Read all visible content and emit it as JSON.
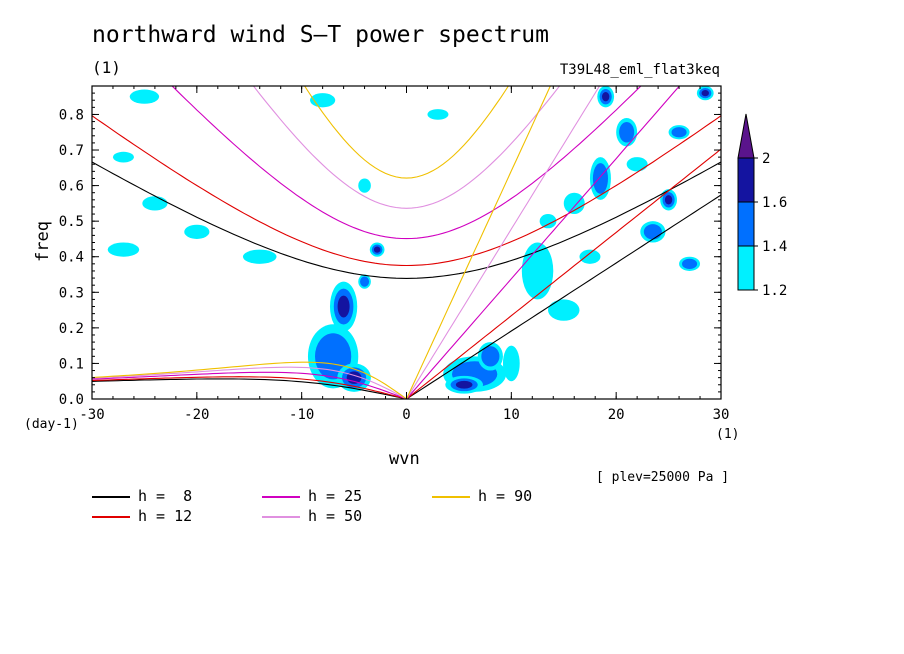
{
  "title": "northward wind S–T power spectrum",
  "subtitle_unit": "(1)",
  "run_name": "T39L48_eml_flat3keq",
  "plev_note": "[ plev=25000 Pa ]",
  "chart_data": {
    "type": "heatmap",
    "xlabel": "wvn",
    "xunit": "(1)",
    "ylabel": "freq",
    "yunit": "(day-1)",
    "xlim": [
      -30,
      30
    ],
    "ylim": [
      0,
      0.88
    ],
    "xticks": [
      "-30",
      "-20",
      "-10",
      "0",
      "10",
      "20",
      "30"
    ],
    "yticks": [
      "0.0",
      "0.1",
      "0.2",
      "0.3",
      "0.4",
      "0.5",
      "0.6",
      "0.7",
      "0.8"
    ],
    "colorbar": {
      "levels": [
        "1.2",
        "1.4",
        "1.6",
        "2"
      ],
      "colors": [
        "#00f0ff",
        "#0070ff",
        "#1414a0",
        "#5a148c"
      ]
    },
    "dispersion_curves": [
      {
        "name": "h =  8",
        "h": 8,
        "color": "#000000"
      },
      {
        "name": "h = 12",
        "h": 12,
        "color": "#e00000"
      },
      {
        "name": "h = 25",
        "h": 25,
        "color": "#d000c0"
      },
      {
        "name": "h = 50",
        "h": 50,
        "color": "#e090e0"
      },
      {
        "name": "h = 90",
        "h": 90,
        "color": "#f0c000"
      }
    ],
    "blobs": [
      {
        "x": -6.0,
        "y": 0.26,
        "rx": 1.3,
        "ry": 0.07,
        "level": 2
      },
      {
        "x": -7.0,
        "y": 0.12,
        "rx": 2.4,
        "ry": 0.09,
        "level": 1
      },
      {
        "x": -5.0,
        "y": 0.06,
        "rx": 1.6,
        "ry": 0.04,
        "level": 2
      },
      {
        "x": -4.0,
        "y": 0.33,
        "rx": 0.6,
        "ry": 0.02,
        "level": 1
      },
      {
        "x": -2.8,
        "y": 0.42,
        "rx": 0.7,
        "ry": 0.02,
        "level": 2
      },
      {
        "x": 6.5,
        "y": 0.07,
        "rx": 3.0,
        "ry": 0.05,
        "level": 1
      },
      {
        "x": 5.5,
        "y": 0.04,
        "rx": 1.8,
        "ry": 0.025,
        "level": 2
      },
      {
        "x": 8.0,
        "y": 0.12,
        "rx": 1.2,
        "ry": 0.04,
        "level": 1
      },
      {
        "x": 12.5,
        "y": 0.36,
        "rx": 1.5,
        "ry": 0.08,
        "level": 0
      },
      {
        "x": 18.5,
        "y": 0.62,
        "rx": 1.0,
        "ry": 0.06,
        "level": 1
      },
      {
        "x": 21.0,
        "y": 0.75,
        "rx": 1.0,
        "ry": 0.04,
        "level": 1
      },
      {
        "x": 19.0,
        "y": 0.85,
        "rx": 0.8,
        "ry": 0.03,
        "level": 2
      },
      {
        "x": 25.0,
        "y": 0.56,
        "rx": 0.8,
        "ry": 0.03,
        "level": 2
      },
      {
        "x": 27.0,
        "y": 0.38,
        "rx": 1.0,
        "ry": 0.02,
        "level": 1
      },
      {
        "x": 23.5,
        "y": 0.47,
        "rx": 1.2,
        "ry": 0.03,
        "level": 1
      },
      {
        "x": 16.0,
        "y": 0.55,
        "rx": 1.0,
        "ry": 0.03,
        "level": 0
      },
      {
        "x": -27.0,
        "y": 0.42,
        "rx": 1.5,
        "ry": 0.02,
        "level": 0
      },
      {
        "x": -24.0,
        "y": 0.55,
        "rx": 1.2,
        "ry": 0.02,
        "level": 0
      },
      {
        "x": -20.0,
        "y": 0.47,
        "rx": 1.2,
        "ry": 0.02,
        "level": 0
      },
      {
        "x": -27.0,
        "y": 0.68,
        "rx": 1.0,
        "ry": 0.015,
        "level": 0
      },
      {
        "x": -25.0,
        "y": 0.85,
        "rx": 1.4,
        "ry": 0.02,
        "level": 0
      },
      {
        "x": -14.0,
        "y": 0.4,
        "rx": 1.6,
        "ry": 0.02,
        "level": 0
      },
      {
        "x": -4.0,
        "y": 0.6,
        "rx": 0.6,
        "ry": 0.02,
        "level": 0
      },
      {
        "x": -8.0,
        "y": 0.84,
        "rx": 1.2,
        "ry": 0.02,
        "level": 0
      },
      {
        "x": 3.0,
        "y": 0.8,
        "rx": 1.0,
        "ry": 0.015,
        "level": 0
      },
      {
        "x": 28.5,
        "y": 0.86,
        "rx": 0.8,
        "ry": 0.02,
        "level": 2
      },
      {
        "x": 15.0,
        "y": 0.25,
        "rx": 1.5,
        "ry": 0.03,
        "level": 0
      },
      {
        "x": 17.5,
        "y": 0.4,
        "rx": 1.0,
        "ry": 0.02,
        "level": 0
      },
      {
        "x": 26.0,
        "y": 0.75,
        "rx": 1.0,
        "ry": 0.02,
        "level": 1
      },
      {
        "x": 10.0,
        "y": 0.1,
        "rx": 0.8,
        "ry": 0.05,
        "level": 0
      },
      {
        "x": 13.5,
        "y": 0.5,
        "rx": 0.8,
        "ry": 0.02,
        "level": 0
      },
      {
        "x": 22.0,
        "y": 0.66,
        "rx": 1.0,
        "ry": 0.02,
        "level": 0
      }
    ]
  }
}
